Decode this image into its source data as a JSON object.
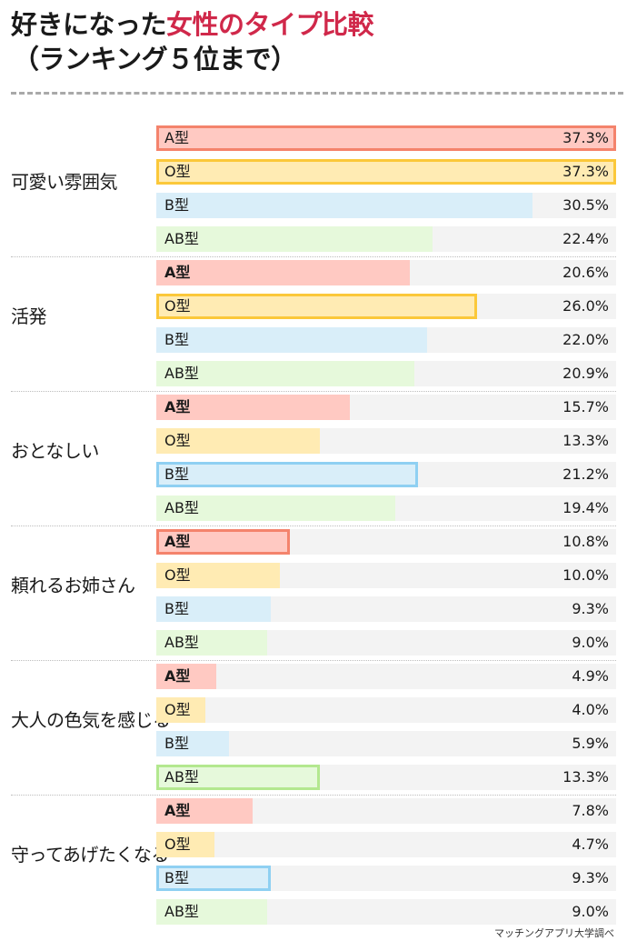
{
  "header": {
    "title_part1": "好きになった",
    "title_accent": "女性のタイプ比較",
    "title_line2": "（ランキング５位まで）"
  },
  "source": "マッチングアプリ大学調べ",
  "colors": {
    "accent": "#d0284a",
    "A": {
      "fill": "#ffc9c2",
      "border": "#f4836c"
    },
    "O": {
      "fill": "#ffebb3",
      "border": "#fbc83a"
    },
    "B": {
      "fill": "#d9eef9",
      "border": "#8fd0f2"
    },
    "AB": {
      "fill": "#e6f9db",
      "border": "#b3e88f"
    },
    "track": "#f3f3f3"
  },
  "chart_data": {
    "type": "bar",
    "orientation": "horizontal",
    "title": "好きになった女性のタイプ比較（ランキング５位まで）",
    "xlabel": "",
    "ylabel": "",
    "xlim": [
      0,
      37.3
    ],
    "grid": false,
    "legend": "none (labels inside bars)",
    "series_names": [
      "A型",
      "O型",
      "B型",
      "AB型"
    ],
    "categories": [
      "可愛い雰囲気",
      "活発",
      "おとなしい",
      "頼れるお姉さん",
      "大人の色気を感じる",
      "守ってあげたくなる"
    ],
    "series": [
      {
        "name": "A型",
        "values": [
          37.3,
          20.6,
          15.7,
          10.8,
          4.9,
          7.8
        ]
      },
      {
        "name": "O型",
        "values": [
          37.3,
          26.0,
          13.3,
          10.0,
          4.0,
          4.7
        ]
      },
      {
        "name": "B型",
        "values": [
          30.5,
          22.0,
          21.2,
          9.3,
          5.9,
          9.3
        ]
      },
      {
        "name": "AB型",
        "values": [
          22.4,
          20.9,
          19.4,
          9.0,
          13.3,
          9.0
        ]
      }
    ],
    "highlighted": {
      "可愛い雰囲気": [
        "A型",
        "O型"
      ],
      "活発": [
        "O型"
      ],
      "おとなしい": [
        "B型"
      ],
      "頼れるお姉さん": [
        "A型"
      ],
      "大人の色気を感じる": [
        "AB型"
      ],
      "守ってあげたくなる": [
        "B型"
      ]
    },
    "source": "マッチングアプリ大学調べ"
  },
  "groups": [
    {
      "label": "可愛い雰囲気",
      "rows": [
        {
          "type": "A",
          "label": "A型",
          "value": 37.3,
          "display": "37.3%",
          "hl": true,
          "bold": false
        },
        {
          "type": "O",
          "label": "O型",
          "value": 37.3,
          "display": "37.3%",
          "hl": true,
          "bold": false
        },
        {
          "type": "B",
          "label": "B型",
          "value": 30.5,
          "display": "30.5%",
          "hl": false,
          "bold": false
        },
        {
          "type": "AB",
          "label": "AB型",
          "value": 22.4,
          "display": "22.4%",
          "hl": false,
          "bold": false
        }
      ]
    },
    {
      "label": "活発",
      "rows": [
        {
          "type": "A",
          "label": "A型",
          "value": 20.6,
          "display": "20.6%",
          "hl": false,
          "bold": true
        },
        {
          "type": "O",
          "label": "O型",
          "value": 26.0,
          "display": "26.0%",
          "hl": true,
          "bold": false
        },
        {
          "type": "B",
          "label": "B型",
          "value": 22.0,
          "display": "22.0%",
          "hl": false,
          "bold": false
        },
        {
          "type": "AB",
          "label": "AB型",
          "value": 20.9,
          "display": "20.9%",
          "hl": false,
          "bold": false
        }
      ]
    },
    {
      "label": "おとなしい",
      "rows": [
        {
          "type": "A",
          "label": "A型",
          "value": 15.7,
          "display": "15.7%",
          "hl": false,
          "bold": true
        },
        {
          "type": "O",
          "label": "O型",
          "value": 13.3,
          "display": "13.3%",
          "hl": false,
          "bold": false
        },
        {
          "type": "B",
          "label": "B型",
          "value": 21.2,
          "display": "21.2%",
          "hl": true,
          "bold": false
        },
        {
          "type": "AB",
          "label": "AB型",
          "value": 19.4,
          "display": "19.4%",
          "hl": false,
          "bold": false
        }
      ]
    },
    {
      "label": "頼れるお姉さん",
      "rows": [
        {
          "type": "A",
          "label": "A型",
          "value": 10.8,
          "display": "10.8%",
          "hl": true,
          "bold": true
        },
        {
          "type": "O",
          "label": "O型",
          "value": 10.0,
          "display": "10.0%",
          "hl": false,
          "bold": false
        },
        {
          "type": "B",
          "label": "B型",
          "value": 9.3,
          "display": "9.3%",
          "hl": false,
          "bold": false
        },
        {
          "type": "AB",
          "label": "AB型",
          "value": 9.0,
          "display": "9.0%",
          "hl": false,
          "bold": false
        }
      ]
    },
    {
      "label": "大人の色気を感じる",
      "rows": [
        {
          "type": "A",
          "label": "A型",
          "value": 4.9,
          "display": "4.9%",
          "hl": false,
          "bold": true
        },
        {
          "type": "O",
          "label": "O型",
          "value": 4.0,
          "display": "4.0%",
          "hl": false,
          "bold": false
        },
        {
          "type": "B",
          "label": "B型",
          "value": 5.9,
          "display": "5.9%",
          "hl": false,
          "bold": false
        },
        {
          "type": "AB",
          "label": "AB型",
          "value": 13.3,
          "display": "13.3%",
          "hl": true,
          "bold": false
        }
      ]
    },
    {
      "label": "守ってあげたくなる",
      "rows": [
        {
          "type": "A",
          "label": "A型",
          "value": 7.8,
          "display": "7.8%",
          "hl": false,
          "bold": true
        },
        {
          "type": "O",
          "label": "O型",
          "value": 4.7,
          "display": "4.7%",
          "hl": false,
          "bold": false
        },
        {
          "type": "B",
          "label": "B型",
          "value": 9.3,
          "display": "9.3%",
          "hl": true,
          "bold": false
        },
        {
          "type": "AB",
          "label": "AB型",
          "value": 9.0,
          "display": "9.0%",
          "hl": false,
          "bold": false
        }
      ]
    }
  ]
}
